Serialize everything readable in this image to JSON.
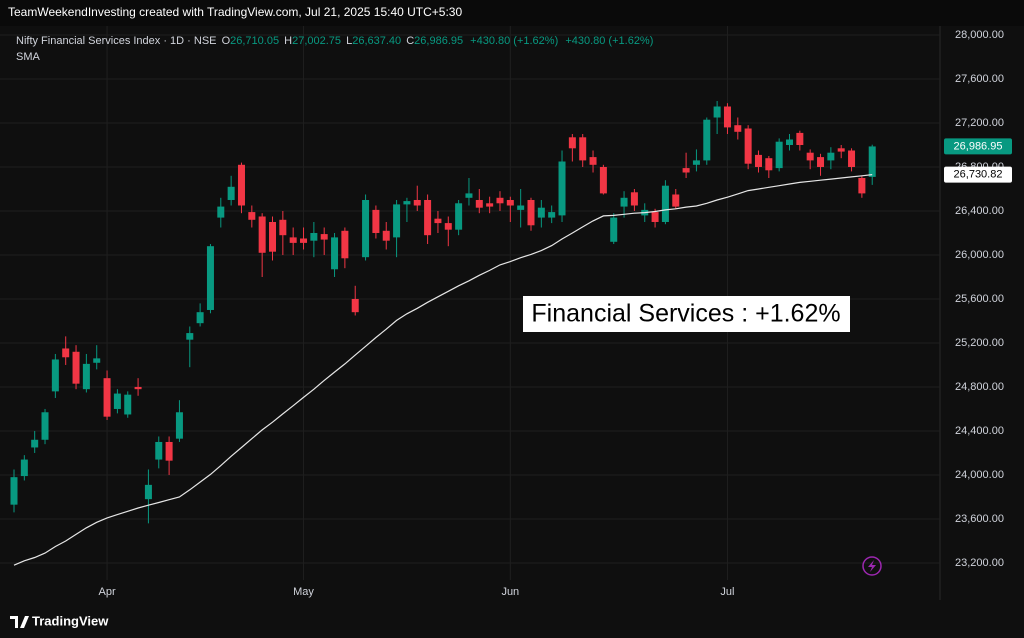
{
  "header": "TeamWeekendInvesting created with TradingView.com, Jul 21, 2025 15:40 UTC+5:30",
  "footer": "TradingView",
  "chart_data": {
    "type": "candlestick",
    "legend": {
      "symbol": "Nifty Financial Services Index · 1D · NSE",
      "ohlc": [
        {
          "key": "O",
          "label": "26,710.05"
        },
        {
          "key": "H",
          "label": "27,002.75"
        },
        {
          "key": "L",
          "label": "26,637.40"
        },
        {
          "key": "C",
          "label": "26,986.95"
        }
      ],
      "changes": [
        "+430.80 (+1.62%)",
        "+430.80 (+1.62%)"
      ]
    },
    "annotation": "Financial Services : +1.62%",
    "up_color": "#089981",
    "down_color": "#f23645",
    "categories": [
      null,
      null,
      null,
      null,
      null,
      null,
      null,
      null,
      null,
      "Apr",
      null,
      null,
      null,
      null,
      null,
      null,
      null,
      null,
      null,
      null,
      null,
      null,
      null,
      null,
      null,
      null,
      null,
      null,
      "May",
      null,
      null,
      null,
      null,
      null,
      null,
      null,
      null,
      null,
      null,
      null,
      null,
      null,
      null,
      null,
      null,
      null,
      null,
      null,
      "Jun",
      null,
      null,
      null,
      null,
      null,
      null,
      null,
      null,
      null,
      null,
      null,
      null,
      null,
      null,
      null,
      null,
      null,
      null,
      null,
      null,
      "Jul",
      null,
      null,
      null,
      null,
      null,
      null,
      null,
      null,
      null,
      null,
      null,
      null,
      null,
      null
    ],
    "open": [
      23730,
      23990,
      24250,
      24320,
      24760,
      25150,
      25120,
      24780,
      25020,
      24880,
      24600,
      24550,
      24800,
      23780,
      24140,
      24300,
      24330,
      25230,
      25380,
      25500,
      26340,
      26500,
      26820,
      26390,
      26350,
      26300,
      26320,
      26160,
      26150,
      26130,
      26190,
      25870,
      26220,
      25600,
      25980,
      26410,
      26220,
      26160,
      26460,
      26500,
      26500,
      26330,
      26290,
      26230,
      26520,
      26500,
      26470,
      26520,
      26500,
      26410,
      26500,
      26340,
      26340,
      26360,
      27070,
      27070,
      26890,
      26800,
      26120,
      26440,
      26570,
      26360,
      26390,
      26300,
      26550,
      26790,
      26820,
      26860,
      27250,
      27350,
      27180,
      27150,
      26910,
      26880,
      26790,
      27000,
      27110,
      26930,
      26890,
      26860,
      26970,
      26950,
      26700,
      26710.05
    ],
    "high": [
      24050,
      24180,
      24400,
      24600,
      25100,
      25260,
      25180,
      25100,
      25180,
      24950,
      24780,
      24760,
      24880,
      24050,
      24350,
      24350,
      24680,
      25350,
      25560,
      26100,
      26520,
      26720,
      26840,
      26450,
      26380,
      26350,
      26400,
      26250,
      26250,
      26300,
      26250,
      26200,
      26250,
      25720,
      26550,
      26450,
      26300,
      26500,
      26520,
      26630,
      26550,
      26400,
      26350,
      26500,
      26700,
      26600,
      26530,
      26580,
      26530,
      26600,
      26520,
      26500,
      26450,
      26950,
      27100,
      27100,
      26950,
      26820,
      26380,
      26580,
      26600,
      26470,
      26420,
      26680,
      26600,
      26930,
      26960,
      27250,
      27400,
      27380,
      27250,
      27180,
      26950,
      26900,
      27060,
      27100,
      27130,
      26960,
      26920,
      26980,
      27000,
      26970,
      26720,
      27002.75
    ],
    "low": [
      23660,
      23950,
      24200,
      24280,
      24700,
      25000,
      24780,
      24750,
      24960,
      24500,
      24560,
      24520,
      24720,
      23560,
      24060,
      24000,
      24300,
      24980,
      25350,
      25470,
      26250,
      26450,
      26380,
      26250,
      25800,
      25950,
      26000,
      26000,
      26050,
      25980,
      26000,
      25800,
      25880,
      25450,
      25950,
      26150,
      26050,
      25980,
      26300,
      26400,
      26100,
      26200,
      26080,
      26180,
      26450,
      26380,
      26380,
      26400,
      26300,
      26250,
      26220,
      26250,
      26290,
      26300,
      26850,
      26800,
      26750,
      26550,
      26100,
      26340,
      26400,
      26300,
      26250,
      26280,
      26420,
      26700,
      26760,
      26820,
      27100,
      27100,
      27050,
      26780,
      26750,
      26700,
      26760,
      26950,
      26950,
      26780,
      26720,
      26780,
      26880,
      26760,
      26520,
      26637.4
    ],
    "close": [
      23980,
      24140,
      24320,
      24570,
      25050,
      25070,
      24830,
      25010,
      25060,
      24530,
      24740,
      24730,
      24780,
      23910,
      24300,
      24130,
      24570,
      25290,
      25480,
      26080,
      26440,
      26620,
      26450,
      26320,
      26020,
      26030,
      26180,
      26110,
      26110,
      26200,
      26140,
      26160,
      25970,
      25480,
      26500,
      26200,
      26130,
      26460,
      26490,
      26450,
      26180,
      26290,
      26230,
      26470,
      26560,
      26430,
      26440,
      26470,
      26450,
      26450,
      26270,
      26430,
      26390,
      26850,
      26970,
      26860,
      26820,
      26560,
      26340,
      26520,
      26450,
      26410,
      26300,
      26630,
      26440,
      26750,
      26860,
      27230,
      27350,
      27160,
      27120,
      26830,
      26800,
      26770,
      27030,
      27050,
      27000,
      26860,
      26800,
      26930,
      26940,
      26800,
      26560,
      26986.95
    ],
    "series": [
      {
        "name": "SMA",
        "color": "#e6e6e6",
        "values": [
          23180,
          23220,
          23250,
          23290,
          23350,
          23400,
          23460,
          23520,
          23570,
          23610,
          23640,
          23670,
          23700,
          23725,
          23750,
          23775,
          23800,
          23865,
          23935,
          24005,
          24085,
          24170,
          24250,
          24330,
          24410,
          24480,
          24555,
          24630,
          24705,
          24780,
          24860,
          24935,
          25010,
          25090,
          25170,
          25250,
          25325,
          25405,
          25465,
          25515,
          25570,
          25620,
          25670,
          25720,
          25765,
          25815,
          25860,
          25910,
          25940,
          25975,
          26005,
          26040,
          26085,
          26145,
          26200,
          26255,
          26310,
          26355,
          26360,
          26370,
          26380,
          26385,
          26395,
          26410,
          26420,
          26435,
          26445,
          26470,
          26500,
          26525,
          26555,
          26585,
          26600,
          26615,
          26630,
          26645,
          26660,
          26670,
          26680,
          26690,
          26700,
          26710,
          26720,
          26730.82
        ]
      }
    ],
    "last_price": {
      "value": 26986.95,
      "label": "26,986.95"
    },
    "sma_last": {
      "value": 26730.82,
      "label": "26,730.82"
    },
    "ylim": [
      23045,
      28091
    ],
    "yticks": [
      {
        "value": 23200,
        "label": "23,200.00"
      },
      {
        "value": 23600,
        "label": "23,600.00"
      },
      {
        "value": 24000,
        "label": "24,000.00"
      },
      {
        "value": 24400,
        "label": "24,400.00"
      },
      {
        "value": 24800,
        "label": "24,800.00"
      },
      {
        "value": 25200,
        "label": "25,200.00"
      },
      {
        "value": 25600,
        "label": "25,600.00"
      },
      {
        "value": 26000,
        "label": "26,000.00"
      },
      {
        "value": 26400,
        "label": "26,400.00"
      },
      {
        "value": 26800,
        "label": "26,800.00"
      },
      {
        "value": 27200,
        "label": "27,200.00"
      },
      {
        "value": 27600,
        "label": "27,600.00"
      },
      {
        "value": 28000,
        "label": "28,000.00"
      }
    ],
    "grid": true
  }
}
